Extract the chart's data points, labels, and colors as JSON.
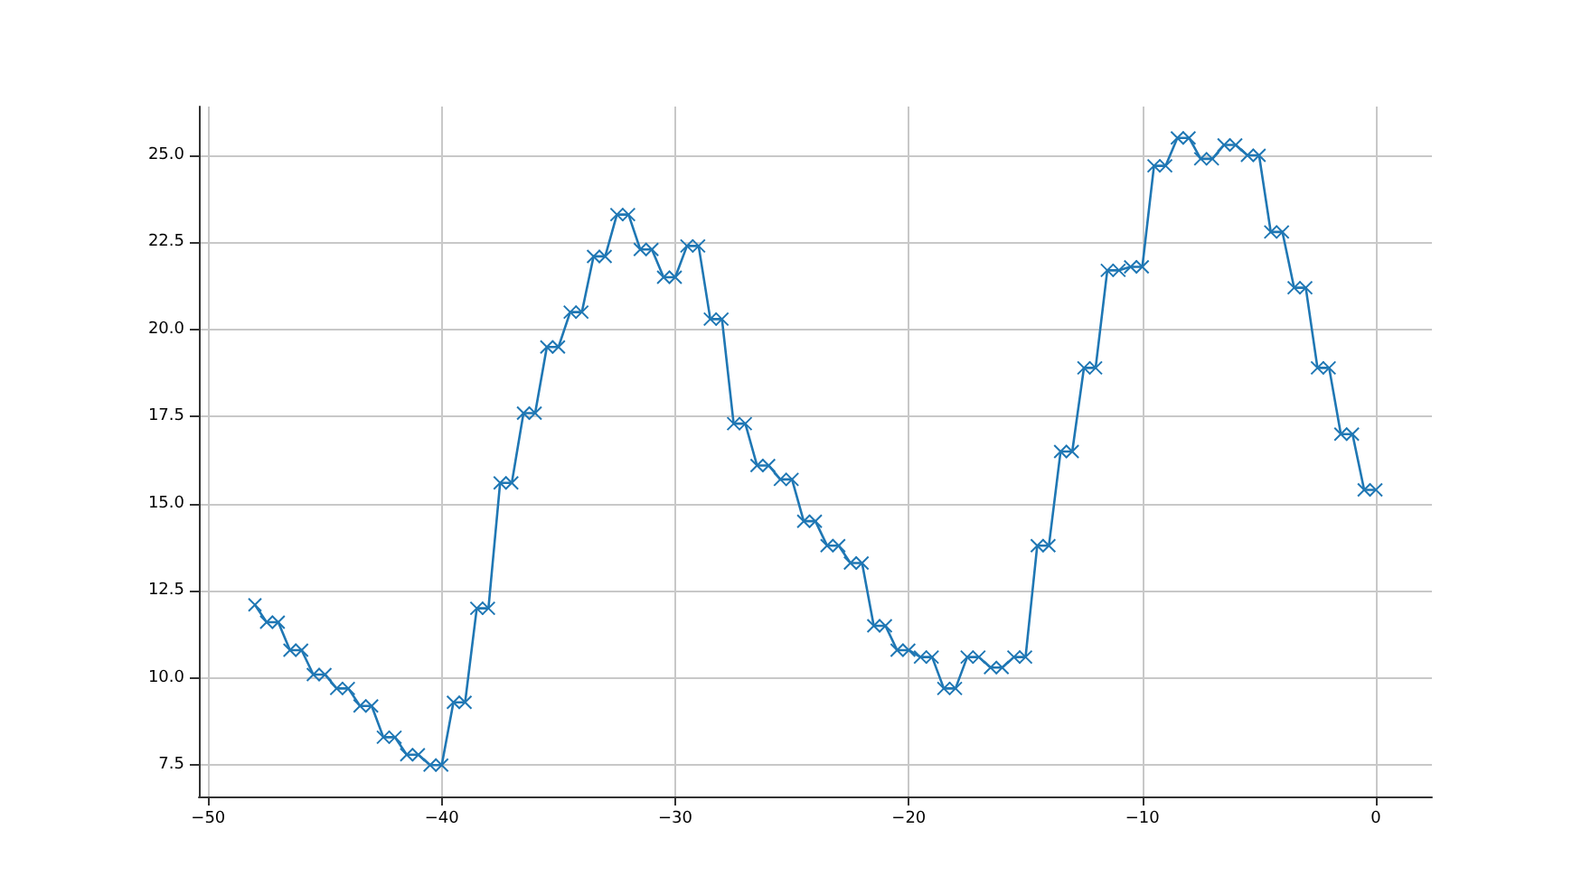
{
  "chart_data": {
    "type": "line",
    "x": [
      -48,
      -47.5,
      -47,
      -46.5,
      -46,
      -45.5,
      -45,
      -44.5,
      -44,
      -43.5,
      -43,
      -42.5,
      -42,
      -41.5,
      -41,
      -40.5,
      -40,
      -39.5,
      -39,
      -38.5,
      -38,
      -37.5,
      -37,
      -36.5,
      -36,
      -35.5,
      -35,
      -34.5,
      -34,
      -33.5,
      -33,
      -32.5,
      -32,
      -31.5,
      -31,
      -30.5,
      -30,
      -29.5,
      -29,
      -28.5,
      -28,
      -27.5,
      -27,
      -26.5,
      -26,
      -25.5,
      -25,
      -24.5,
      -24,
      -23.5,
      -23,
      -22.5,
      -22,
      -21.5,
      -21,
      -20.5,
      -20,
      -19.5,
      -19,
      -18.5,
      -18,
      -17.5,
      -17,
      -16.5,
      -16,
      -15.5,
      -15,
      -14.5,
      -14,
      -13.5,
      -13,
      -12.5,
      -12,
      -11.5,
      -11,
      -10.5,
      -10,
      -9.5,
      -9,
      -8.5,
      -8,
      -7.5,
      -7,
      -6.5,
      -6,
      -5.5,
      -5,
      -4.5,
      -4,
      -3.5,
      -3,
      -2.5,
      -2,
      -1.5,
      -1,
      -0.5,
      0
    ],
    "series": [
      {
        "color": "#1f77b4",
        "values": [
          12.1,
          11.6,
          11.6,
          10.8,
          10.8,
          10.1,
          10.1,
          9.7,
          9.7,
          9.2,
          9.2,
          8.3,
          8.3,
          7.8,
          7.8,
          7.5,
          7.5,
          9.3,
          9.3,
          12.0,
          12.0,
          15.6,
          15.6,
          17.6,
          17.6,
          19.5,
          19.5,
          20.5,
          20.5,
          22.1,
          22.1,
          23.3,
          23.3,
          22.3,
          22.3,
          21.5,
          21.5,
          22.4,
          22.4,
          20.3,
          20.3,
          17.3,
          17.3,
          16.1,
          16.1,
          15.7,
          15.7,
          14.5,
          14.5,
          13.8,
          13.8,
          13.3,
          13.3,
          11.5,
          11.5,
          10.8,
          10.8,
          10.6,
          10.6,
          9.7,
          9.7,
          10.6,
          10.6,
          10.3,
          10.3,
          10.6,
          10.6,
          13.8,
          13.8,
          16.5,
          16.5,
          18.9,
          18.9,
          21.7,
          21.7,
          21.8,
          21.8,
          24.7,
          24.7,
          25.5,
          25.5,
          24.9,
          24.9,
          25.3,
          25.3,
          25.0,
          25.0,
          22.8,
          22.8,
          21.2,
          21.2,
          18.9,
          18.9,
          17.0,
          17.0,
          15.4,
          15.4
        ]
      }
    ],
    "xlim": [
      -50.4,
      2.4
    ],
    "xticks": [
      {
        "value": -50,
        "label": "−50"
      },
      {
        "value": -40,
        "label": "−40"
      },
      {
        "value": -30,
        "label": "−30"
      },
      {
        "value": -20,
        "label": "−20"
      },
      {
        "value": -10,
        "label": "−10"
      },
      0
    ],
    "ylim": [
      6.6,
      26.4
    ],
    "yticks": [
      7.5,
      {
        "value": 10,
        "label": "10.0"
      },
      12.5,
      {
        "value": 15,
        "label": "15.0"
      },
      17.5,
      {
        "value": 20,
        "label": "20.0"
      },
      22.5,
      {
        "value": 25,
        "label": "25.0"
      }
    ],
    "grid": true,
    "marker": "cross",
    "line_style": "solid"
  }
}
